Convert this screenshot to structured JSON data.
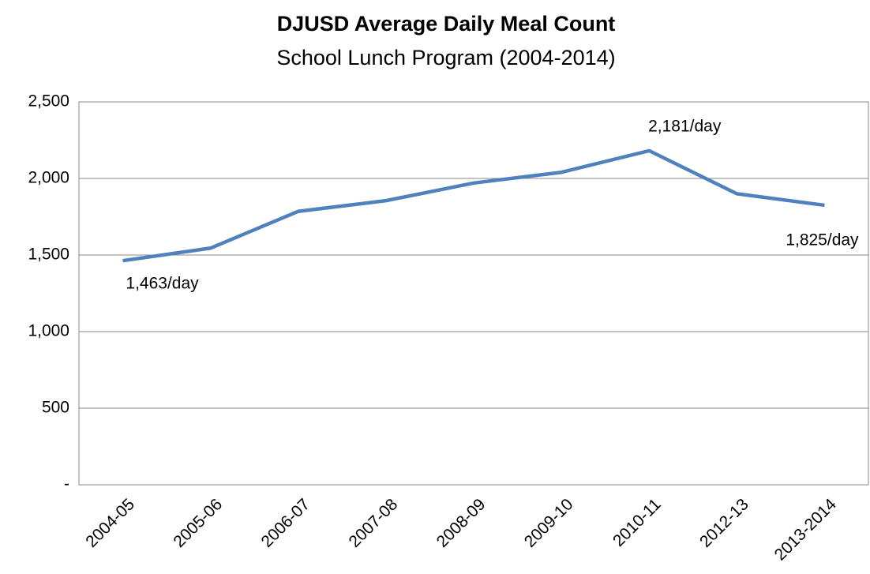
{
  "chart_data": {
    "type": "line",
    "title": "DJUSD Average Daily Meal Count",
    "subtitle": "School Lunch Program (2004-2014)",
    "categories": [
      "2004-05",
      "2005-06",
      "2006-07",
      "2007-08",
      "2008-09",
      "2009-10",
      "2010-11",
      "2012-13",
      "2013-2014"
    ],
    "series": [
      {
        "name": "Average Daily Meal Count",
        "color": "#4f81bd",
        "values": [
          1463,
          1545,
          1785,
          1855,
          1970,
          2040,
          2181,
          1900,
          1825
        ],
        "value_labels": [
          "1,463/day",
          null,
          null,
          null,
          null,
          null,
          "2,181/day",
          null,
          "1,825/day"
        ]
      }
    ],
    "ylim": [
      0,
      2500
    ],
    "yticks": [
      {
        "value": 0,
        "label": "-"
      },
      500,
      {
        "value": 1000,
        "label": "1,000"
      },
      {
        "value": 1500,
        "label": "1,500"
      },
      {
        "value": 2000,
        "label": "2,000"
      },
      {
        "value": 2500,
        "label": "2,500"
      }
    ],
    "grid": true
  }
}
